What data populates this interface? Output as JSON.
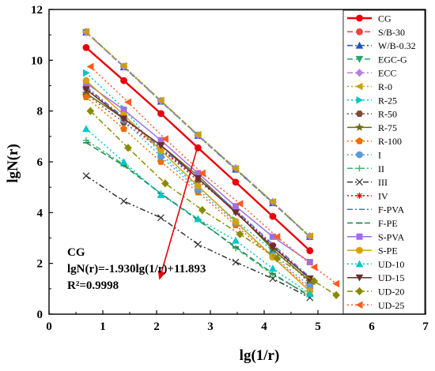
{
  "chart_data": {
    "type": "line",
    "title": "",
    "xlabel": "lg(1/r)",
    "ylabel": "lgN(r)",
    "xlim": [
      0,
      7
    ],
    "ylim": [
      0,
      12
    ],
    "xticks": [
      "0",
      "1",
      "2",
      "3",
      "4",
      "5",
      "6",
      "7"
    ],
    "yticks": [
      "0",
      "2",
      "4",
      "6",
      "8",
      "10",
      "12"
    ],
    "grid": false,
    "legend_position": "right",
    "annotation": {
      "title": "CG",
      "equation": "lgN(r)=-1.930lg(1/r)+11.893",
      "r2": "R²=0.9998",
      "arrow_from": [
        2.75,
        6.5
      ],
      "arrow_to": [
        2.05,
        1.35
      ]
    },
    "series": [
      {
        "name": "CG",
        "color": "#e8000b",
        "marker": "circle",
        "dash": "solid",
        "x": [
          0.69,
          1.39,
          2.08,
          2.77,
          3.47,
          4.16,
          4.85
        ],
        "y": [
          10.5,
          9.2,
          7.9,
          6.55,
          5.2,
          3.85,
          2.5
        ]
      },
      {
        "name": "S/B-30",
        "color": "#e8443a",
        "marker": "circle",
        "dash": "dash",
        "x": [
          0.69,
          1.39,
          2.08,
          2.77,
          3.47,
          4.16,
          4.85
        ],
        "y": [
          11.12,
          9.75,
          8.4,
          7.05,
          5.72,
          4.4,
          3.05
        ]
      },
      {
        "name": "W/B-0.32",
        "color": "#1f4fd6",
        "marker": "triangle",
        "dash": "dashdot",
        "x": [
          0.69,
          1.39,
          2.08,
          2.77,
          3.47,
          4.16,
          4.85
        ],
        "y": [
          11.1,
          9.73,
          8.38,
          7.03,
          5.7,
          4.38,
          3.05
        ]
      },
      {
        "name": "EGC-G",
        "color": "#2aa36a",
        "marker": "triangle-down",
        "dash": "dash",
        "x": [
          0.69,
          1.39,
          2.08,
          2.77,
          3.47,
          4.16,
          4.85
        ],
        "y": [
          11.1,
          9.75,
          8.4,
          7.05,
          5.72,
          4.4,
          3.05
        ]
      },
      {
        "name": "ECC",
        "color": "#b77ee0",
        "marker": "diamond",
        "dash": "dashdot",
        "x": [
          0.69,
          1.39,
          2.08,
          2.77,
          3.47,
          4.16,
          4.85
        ],
        "y": [
          11.1,
          9.75,
          8.4,
          7.05,
          5.75,
          4.42,
          3.07
        ]
      },
      {
        "name": "R-0",
        "color": "#c8a000",
        "marker": "triangle-left",
        "dash": "dot",
        "x": [
          0.69,
          1.39,
          2.08,
          2.77,
          3.47,
          4.16,
          4.85
        ],
        "y": [
          11.12,
          9.78,
          8.42,
          7.07,
          5.73,
          4.42,
          3.07
        ]
      },
      {
        "name": "R-25",
        "color": "#00c5cc",
        "marker": "triangle-right",
        "dash": "dot",
        "x": [
          0.69,
          1.39,
          2.08,
          2.77,
          3.47,
          4.16,
          4.85
        ],
        "y": [
          9.5,
          8.1,
          6.3,
          5.0,
          3.7,
          2.5,
          1.35
        ]
      },
      {
        "name": "R-50",
        "color": "#7a4a3a",
        "marker": "hexagon",
        "dash": "dot",
        "x": [
          0.69,
          1.39,
          2.08,
          2.77,
          3.47,
          4.16,
          4.85
        ],
        "y": [
          8.65,
          7.55,
          6.5,
          5.25,
          4.1,
          2.7,
          1.2
        ]
      },
      {
        "name": "R-75",
        "color": "#6b6b10",
        "marker": "star",
        "dash": "solid",
        "x": [
          0.69,
          1.39,
          2.08,
          2.77,
          3.47,
          4.16,
          4.85
        ],
        "y": [
          8.7,
          7.7,
          6.65,
          5.45,
          4.05,
          2.55,
          1.3
        ]
      },
      {
        "name": "R-100",
        "color": "#f06d00",
        "marker": "pentagon",
        "dash": "dot",
        "x": [
          0.69,
          1.39,
          2.08,
          2.77,
          3.47,
          4.16,
          4.85
        ],
        "y": [
          8.55,
          7.3,
          6.0,
          4.8,
          3.5,
          2.25,
          1.0
        ]
      },
      {
        "name": "I",
        "color": "#5b9bd5",
        "marker": "circle",
        "dash": "dot",
        "x": [
          0.69,
          1.39,
          2.08,
          2.77,
          3.47,
          4.16,
          4.85
        ],
        "y": [
          8.9,
          7.65,
          6.2,
          4.9,
          3.6,
          2.3,
          1.1
        ]
      },
      {
        "name": "II",
        "color": "#3cb371",
        "marker": "plus",
        "dash": "dashdot",
        "x": [
          0.69,
          1.39,
          2.08,
          2.77,
          3.47,
          4.16,
          4.85
        ],
        "y": [
          6.85,
          5.9,
          4.75,
          3.75,
          2.6,
          1.55,
          0.75
        ]
      },
      {
        "name": "III",
        "color": "#333333",
        "marker": "x",
        "dash": "dashdotdot",
        "x": [
          0.69,
          1.39,
          2.08,
          2.77,
          3.47,
          4.16,
          4.85
        ],
        "y": [
          5.45,
          4.45,
          3.8,
          2.75,
          2.05,
          1.4,
          0.65
        ]
      },
      {
        "name": "IV",
        "color": "#e8000b",
        "marker": "asterisk",
        "dash": "dot",
        "x": [
          0.69,
          1.39,
          2.08,
          2.77,
          3.47,
          4.16,
          4.85
        ],
        "y": [
          8.9,
          7.7,
          6.5,
          5.35,
          4.05,
          2.7,
          1.4
        ]
      },
      {
        "name": "F-PVA",
        "color": "#4a70d8",
        "marker": "none",
        "dash": "dashdot",
        "x": [
          0.69,
          1.39,
          2.08,
          2.77,
          3.47,
          4.16,
          4.85
        ],
        "y": [
          8.95,
          7.75,
          6.55,
          5.35,
          4.1,
          2.75,
          1.45
        ]
      },
      {
        "name": "F-PE",
        "color": "#1a8a4f",
        "marker": "minus",
        "dash": "dash",
        "x": [
          0.69,
          1.39,
          2.08,
          2.77,
          3.47,
          4.16,
          4.85
        ],
        "y": [
          6.75,
          5.85,
          4.75,
          3.7,
          2.65,
          1.6,
          0.7
        ]
      },
      {
        "name": "S-PVA",
        "color": "#a070e0",
        "marker": "square",
        "dash": "solid",
        "x": [
          0.69,
          1.39,
          2.08,
          2.77,
          3.47,
          4.16,
          4.85
        ],
        "y": [
          9.1,
          8.05,
          6.85,
          5.55,
          4.25,
          3.05,
          2.05
        ]
      },
      {
        "name": "S-PE",
        "color": "#d4a017",
        "marker": "circle",
        "dash": "solid",
        "x": [
          0.69,
          1.39,
          2.08,
          2.77,
          3.47,
          4.16,
          4.85
        ],
        "y": [
          9.2,
          7.85,
          6.45,
          5.05,
          3.65,
          2.25,
          0.9
        ]
      },
      {
        "name": "UD-10",
        "color": "#00c5cc",
        "marker": "triangle",
        "dash": "dot",
        "x": [
          0.69,
          1.39,
          2.08,
          2.77,
          3.47,
          4.16,
          4.85
        ],
        "y": [
          7.3,
          6.0,
          4.7,
          3.75,
          2.9,
          1.8,
          0.8
        ]
      },
      {
        "name": "UD-15",
        "color": "#6b2e2e",
        "marker": "triangle-down",
        "dash": "solid",
        "x": [
          0.69,
          1.39,
          2.08,
          2.77,
          3.47,
          4.16,
          4.85
        ],
        "y": [
          8.85,
          7.7,
          6.65,
          5.35,
          4.0,
          2.65,
          1.4
        ]
      },
      {
        "name": "UD-20",
        "color": "#8a8a00",
        "marker": "diamond",
        "dash": "dashdot",
        "x": [
          0.77,
          1.47,
          2.16,
          2.85,
          3.55,
          4.24,
          4.93,
          5.34
        ],
        "y": [
          8.0,
          6.55,
          5.15,
          4.1,
          3.15,
          2.2,
          1.3,
          0.75
        ]
      },
      {
        "name": "UD-25",
        "color": "#ff5a1f",
        "marker": "triangle-left",
        "dash": "dot",
        "x": [
          0.77,
          1.47,
          2.16,
          2.85,
          3.55,
          4.24,
          4.93,
          5.34
        ],
        "y": [
          9.75,
          8.35,
          6.9,
          5.55,
          4.35,
          3.05,
          1.85,
          1.2
        ]
      }
    ]
  }
}
